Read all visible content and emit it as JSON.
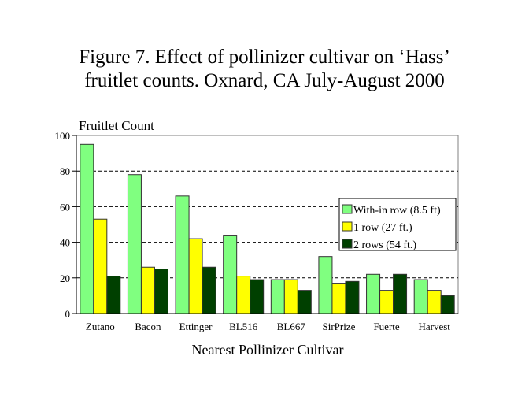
{
  "chart_data": {
    "type": "bar",
    "title_line1": "Figure 7.  Effect of pollinizer cultivar on ‘Hass’",
    "title_line2": "fruitlet counts. Oxnard, CA  July-August 2000",
    "xlabel": "Nearest Pollinizer Cultivar",
    "ylabel": "Fruitlet Count",
    "ylim": [
      0,
      100
    ],
    "yticks": [
      0,
      20,
      40,
      60,
      80,
      100
    ],
    "grid": true,
    "legend_position": "right",
    "categories": [
      "Zutano",
      "Bacon",
      "Ettinger",
      "BL516",
      "BL667",
      "SirPrize",
      "Fuerte",
      "Harvest"
    ],
    "series": [
      {
        "name": "With-in row (8.5 ft)",
        "color": "#80ff80",
        "values": [
          95,
          78,
          66,
          44,
          19,
          32,
          22,
          19
        ]
      },
      {
        "name": "1 row (27 ft.)",
        "color": "#ffff00",
        "values": [
          53,
          26,
          42,
          21,
          19,
          17,
          13,
          13
        ]
      },
      {
        "name": "2 rows (54 ft.)",
        "color": "#004000",
        "values": [
          21,
          25,
          26,
          19,
          13,
          18,
          22,
          10
        ]
      }
    ]
  }
}
